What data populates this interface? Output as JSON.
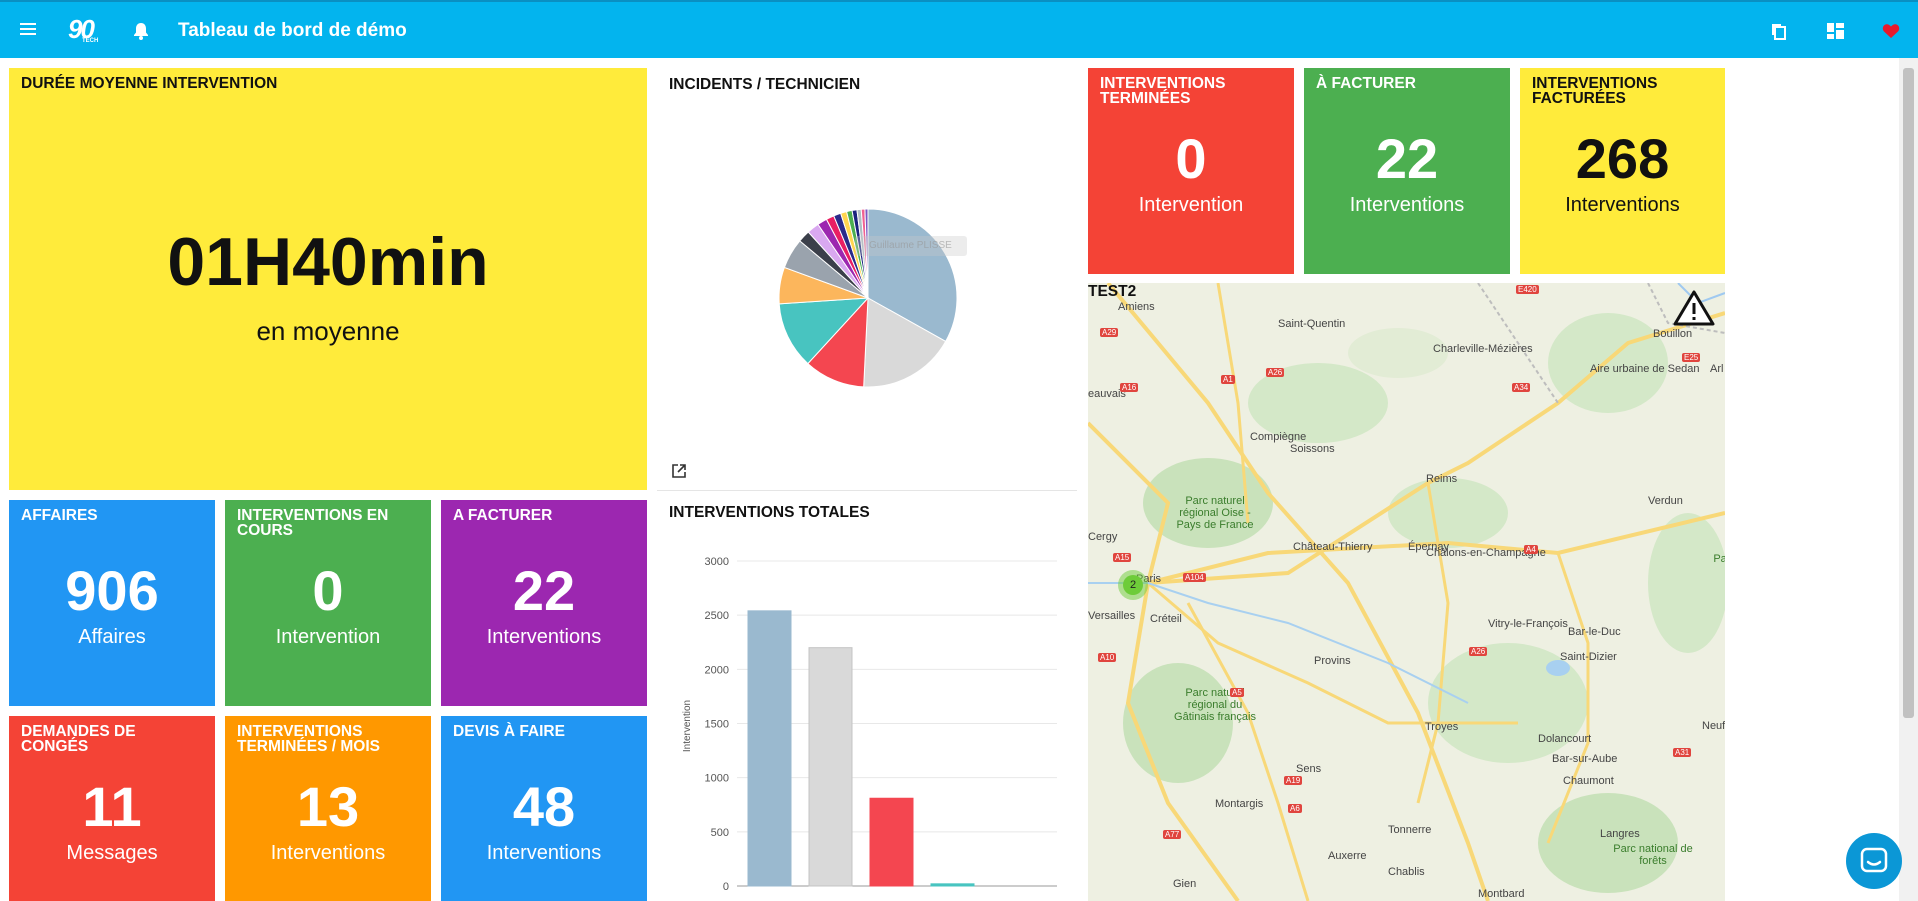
{
  "header": {
    "title": "Tableau de bord de démo",
    "logo_text": "90",
    "logo_sub": "TECH",
    "icons": [
      "menu-icon",
      "bell-icon",
      "copy-icon",
      "dashboard-icon",
      "heart-icon"
    ],
    "bg_color": "#03b4ee"
  },
  "tiles": {
    "duree": {
      "title": "Durée moyenne intervention",
      "value": "01H40min",
      "sub": "en moyenne",
      "color": "#ffeb3b"
    },
    "affaires": {
      "title": "Affaires",
      "value": "906",
      "sub": "Affaires",
      "color": "#2196f3"
    },
    "en_cours": {
      "title": "Interventions en cours",
      "value": "0",
      "sub": "Intervention",
      "color": "#4caf50"
    },
    "a_facturer_2": {
      "title": "A facturer",
      "value": "22",
      "sub": "Interventions",
      "color": "#9c27b0"
    },
    "conges": {
      "title": "Demandes de congés",
      "value": "11",
      "sub": "Messages",
      "color": "#f44336"
    },
    "terminees_mois": {
      "title": "Interventions terminées / mois",
      "value": "13",
      "sub": "Interventions",
      "color": "#ff9800"
    },
    "devis": {
      "title": "Devis à faire",
      "value": "48",
      "sub": "Interventions",
      "color": "#2196f3"
    },
    "terminees": {
      "title": "Interventions terminées",
      "value": "0",
      "sub": "Intervention",
      "color": "#f44336"
    },
    "a_facturer": {
      "title": "À facturer",
      "value": "22",
      "sub": "Interventions",
      "color": "#4caf50"
    },
    "facturees": {
      "title": "Interventions facturées",
      "value": "268",
      "sub": "Interventions",
      "color": "#ffeb3b"
    }
  },
  "incidents": {
    "title": "Incidents / technicien",
    "tooltip": "Guillaume PLISSE"
  },
  "totales": {
    "title": "Interventions totales"
  },
  "map": {
    "title": "test2",
    "cluster_count": "2",
    "labels": [
      {
        "text": "Amiens",
        "road": false
      },
      {
        "text": "Saint-Quentin",
        "road": false
      },
      {
        "text": "Charleville-Mézières",
        "road": false
      },
      {
        "text": "Aire urbaine de Sedan",
        "road": false
      },
      {
        "text": "Compiègne",
        "road": false
      },
      {
        "text": "Soissons",
        "road": false
      },
      {
        "text": "Reims",
        "road": false
      },
      {
        "text": "Parc naturel régional Oise - Pays de France",
        "road": false
      },
      {
        "text": "Château-Thierry",
        "road": false
      },
      {
        "text": "Épernay",
        "road": false
      },
      {
        "text": "Verdun",
        "road": false
      },
      {
        "text": "Paris",
        "road": false
      },
      {
        "text": "Versailles",
        "road": false
      },
      {
        "text": "Créteil",
        "road": false
      },
      {
        "text": "Châlons-en-Champagne",
        "road": false
      },
      {
        "text": "Vitry-le-François",
        "road": false
      },
      {
        "text": "Bar-le-Duc",
        "road": false
      },
      {
        "text": "Saint-Dizier",
        "road": false
      },
      {
        "text": "Provins",
        "road": false
      },
      {
        "text": "Parc naturel régional du Gâtinais français",
        "road": false
      },
      {
        "text": "Troyes",
        "road": false
      },
      {
        "text": "Sens",
        "road": false
      },
      {
        "text": "Dolancourt",
        "road": false
      },
      {
        "text": "Bar-sur-Aube",
        "road": false
      },
      {
        "text": "Chaumont",
        "road": false
      },
      {
        "text": "Montargis",
        "road": false
      },
      {
        "text": "Auxerre",
        "road": false
      },
      {
        "text": "Tonnerre",
        "road": false
      },
      {
        "text": "Chablis",
        "road": false
      },
      {
        "text": "Langres",
        "road": false
      },
      {
        "text": "Parc national de forêts",
        "road": false
      },
      {
        "text": "Neufch",
        "road": false
      },
      {
        "text": "Gien",
        "road": false
      },
      {
        "text": "Montbard",
        "road": false
      },
      {
        "text": "Bouillon",
        "road": false
      },
      {
        "text": "eauvais",
        "road": false
      },
      {
        "text": "Cergy",
        "road": false
      },
      {
        "text": "Arl",
        "road": false
      },
      {
        "text": "Parc régi Lo",
        "road": false
      },
      {
        "text": "A29",
        "road": true
      },
      {
        "text": "A26",
        "road": true
      },
      {
        "text": "A16",
        "road": true
      },
      {
        "text": "A1",
        "road": true
      },
      {
        "text": "A34",
        "road": true
      },
      {
        "text": "E25",
        "road": true
      },
      {
        "text": "E420",
        "road": true
      },
      {
        "text": "A4",
        "road": true
      },
      {
        "text": "A104",
        "road": true
      },
      {
        "text": "A15",
        "road": true
      },
      {
        "text": "A10",
        "road": true
      },
      {
        "text": "A5",
        "road": true
      },
      {
        "text": "A26",
        "road": true
      },
      {
        "text": "A19",
        "road": true
      },
      {
        "text": "A6",
        "road": true
      },
      {
        "text": "A77",
        "road": true
      },
      {
        "text": "A31",
        "road": true
      }
    ]
  },
  "chart_data": [
    {
      "type": "pie",
      "title": "Incidents / technicien",
      "slices": [
        {
          "label": "Guillaume PLISSE",
          "value": 30,
          "color": "#9ab9cf"
        },
        {
          "label": "",
          "value": 16,
          "color": "#d9d9d9"
        },
        {
          "label": "",
          "value": 10,
          "color": "#f44650"
        },
        {
          "label": "",
          "value": 11,
          "color": "#48c4c0"
        },
        {
          "label": "",
          "value": 6,
          "color": "#fcb65c"
        },
        {
          "label": "",
          "value": 5,
          "color": "#9aa3ad"
        },
        {
          "label": "",
          "value": 2,
          "color": "#3b3f4a"
        },
        {
          "label": "",
          "value": 2,
          "color": "#d9a8f0"
        },
        {
          "label": "",
          "value": 1.6,
          "color": "#9c27b0"
        },
        {
          "label": "",
          "value": 1.3,
          "color": "#e91e63"
        },
        {
          "label": "",
          "value": 1.2,
          "color": "#2a2a8a"
        },
        {
          "label": "",
          "value": 1,
          "color": "#ffd54f"
        },
        {
          "label": "",
          "value": 0.9,
          "color": "#4caf50"
        },
        {
          "label": "",
          "value": 0.8,
          "color": "#1a237e"
        },
        {
          "label": "",
          "value": 0.7,
          "color": "#b0bec5"
        },
        {
          "label": "",
          "value": 0.6,
          "color": "#f06292"
        },
        {
          "label": "",
          "value": 0.5,
          "color": "#7e57c2"
        }
      ]
    },
    {
      "type": "bar",
      "title": "Interventions totales",
      "ylabel": "Intervention",
      "ylim": [
        0,
        3000
      ],
      "yticks": [
        0,
        500,
        1000,
        1500,
        2000,
        2500,
        3000
      ],
      "values": [
        2540,
        2200,
        810,
        20
      ],
      "colors": [
        "#9ab9cf",
        "#d9d9d9",
        "#f44650",
        "#48c4c0"
      ]
    }
  ]
}
